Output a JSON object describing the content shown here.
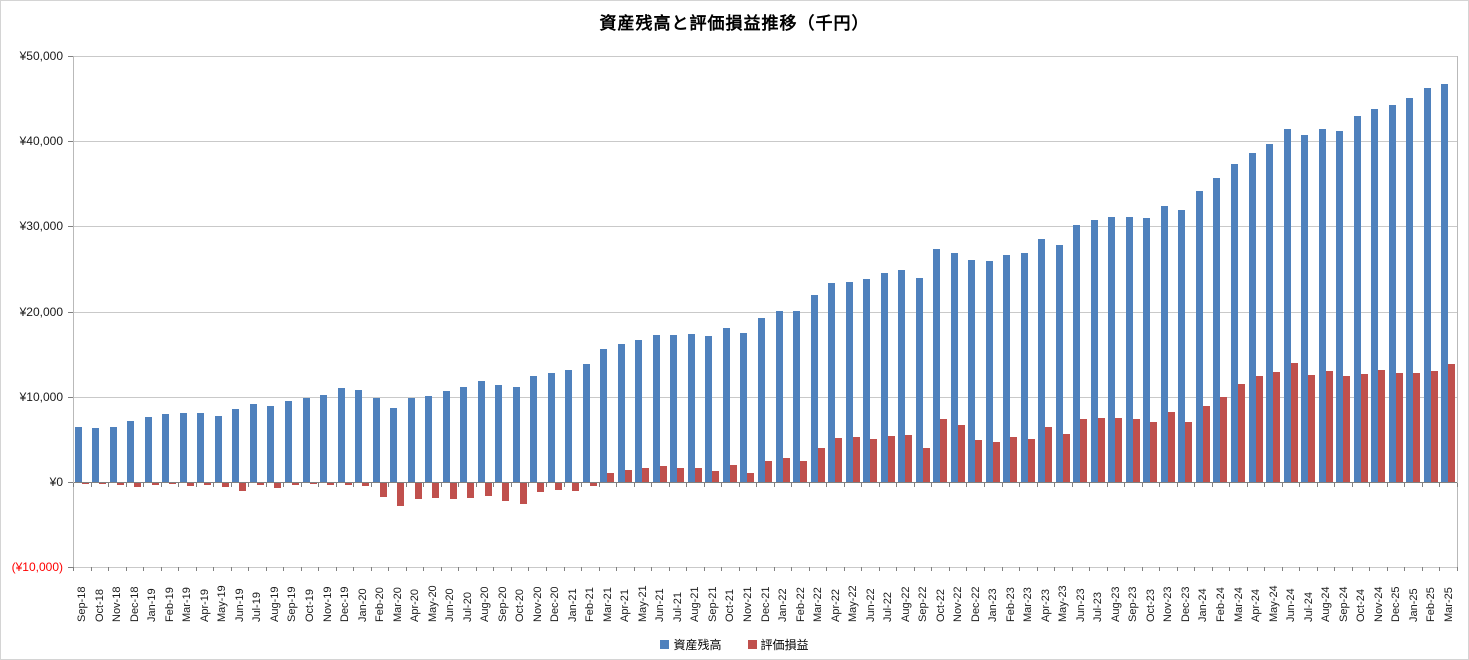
{
  "chart_data": {
    "type": "bar",
    "title": "資産残高と評価損益推移（千円）",
    "legend_position": "bottom",
    "grid": true,
    "y_axis": {
      "min": -10000,
      "max": 50000,
      "step": 10000,
      "tick_labels": [
        "¥50,000",
        "¥40,000",
        "¥30,000",
        "¥20,000",
        "¥10,000",
        "¥0",
        "(¥10,000)"
      ],
      "negative_label_color": "#ff0000"
    },
    "categories": [
      "Sep-18",
      "Oct-18",
      "Nov-18",
      "Dec-18",
      "Jan-19",
      "Feb-19",
      "Mar-19",
      "Apr-19",
      "May-19",
      "Jun-19",
      "Jul-19",
      "Aug-19",
      "Sep-19",
      "Oct-19",
      "Nov-19",
      "Dec-19",
      "Jan-20",
      "Feb-20",
      "Mar-20",
      "Apr-20",
      "May-20",
      "Jun-20",
      "Jul-20",
      "Aug-20",
      "Sep-20",
      "Oct-20",
      "Nov-20",
      "Dec-20",
      "Jan-21",
      "Feb-21",
      "Mar-21",
      "Apr-21",
      "May-21",
      "Jun-21",
      "Jul-21",
      "Aug-21",
      "Sep-21",
      "Oct-21",
      "Nov-21",
      "Dec-21",
      "Jan-22",
      "Feb-22",
      "Mar-22",
      "Apr-22",
      "May-22",
      "Jun-22",
      "Jul-22",
      "Aug-22",
      "Sep-22",
      "Oct-22",
      "Nov-22",
      "Dec-22",
      "Jan-23",
      "Feb-23",
      "Mar-23",
      "Apr-23",
      "May-23",
      "Jun-23",
      "Jul-23",
      "Aug-23",
      "Sep-23",
      "Oct-23",
      "Nov-23",
      "Dec-23",
      "Jan-24",
      "Feb-24",
      "Mar-24",
      "Apr-24",
      "May-24",
      "Jun-24",
      "Jul-24",
      "Aug-24",
      "Sep-24",
      "Oct-24",
      "Nov-24",
      "Dec-25",
      "Jan-25",
      "Feb-25",
      "Mar-25"
    ],
    "series": [
      {
        "name": "資産残高",
        "color": "#4f81bd",
        "values": [
          6500,
          6300,
          6500,
          7200,
          7600,
          8000,
          8100,
          8100,
          7700,
          8600,
          9200,
          8900,
          9500,
          9900,
          10200,
          11000,
          10800,
          9900,
          8700,
          9900,
          10100,
          10700,
          11100,
          11800,
          11400,
          11200,
          12400,
          12800,
          13100,
          13900,
          15600,
          16200,
          16700,
          17200,
          17300,
          17400,
          17100,
          18100,
          17500,
          19300,
          20100,
          20100,
          22000,
          23400,
          23500,
          23800,
          24500,
          24900,
          23900,
          27300,
          26900,
          26000,
          25900,
          26700,
          26900,
          28500,
          27800,
          30200,
          30800,
          31100,
          31100,
          31000,
          32400,
          31900,
          34200,
          35700,
          37300,
          38600,
          39700,
          41400,
          40700,
          41400,
          41200,
          42900,
          43800,
          44200,
          45100,
          46200,
          46700
        ]
      },
      {
        "name": "評価損益",
        "color": "#c0504d",
        "values": [
          -100,
          -100,
          -200,
          -500,
          -200,
          -100,
          -300,
          -200,
          -500,
          -900,
          -200,
          -600,
          -200,
          -100,
          -200,
          -200,
          -300,
          -1600,
          -2700,
          -1900,
          -1800,
          -1900,
          -1800,
          -1500,
          -2100,
          -2500,
          -1000,
          -800,
          -900,
          -400,
          1000,
          1400,
          1600,
          1900,
          1600,
          1700,
          1300,
          2000,
          1100,
          2500,
          2800,
          2500,
          4000,
          5200,
          5300,
          5000,
          5400,
          5500,
          4000,
          7400,
          6700,
          4900,
          4700,
          5300,
          5000,
          6500,
          5600,
          7400,
          7500,
          7500,
          7400,
          7100,
          8200,
          7100,
          8900,
          10000,
          11500,
          12400,
          12900,
          14000,
          12600,
          13000,
          12400,
          12700,
          13100,
          12800,
          12800,
          13000,
          13800
        ]
      }
    ]
  }
}
